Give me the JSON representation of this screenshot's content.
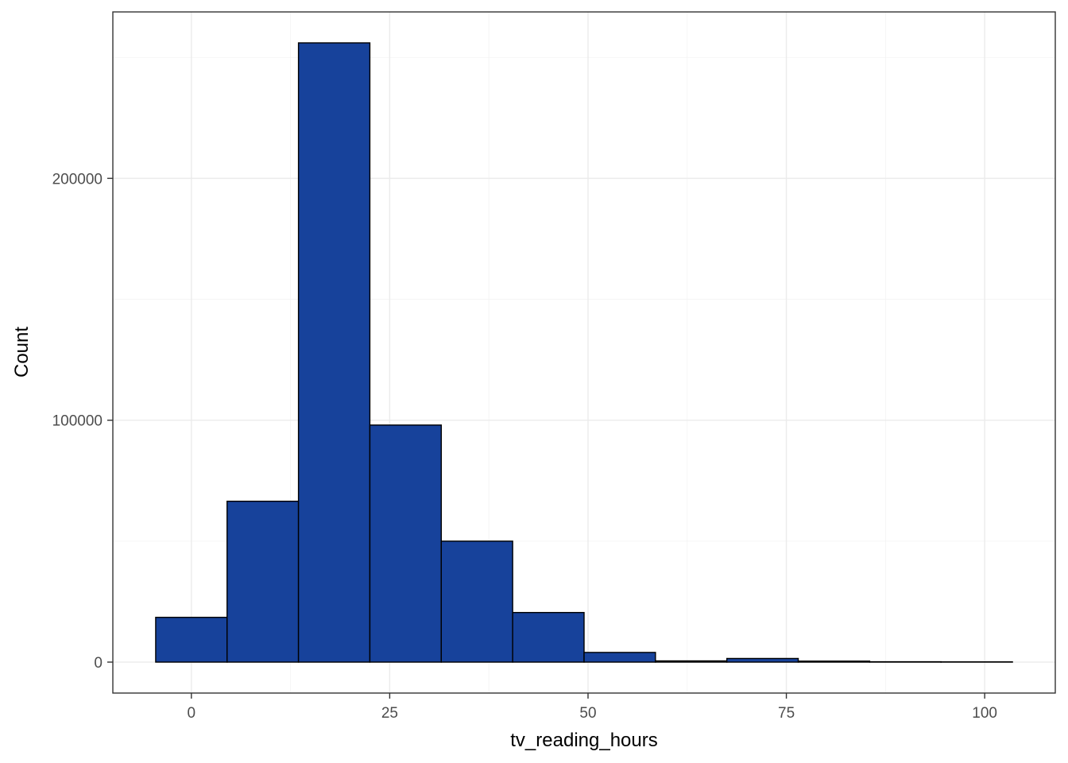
{
  "chart_data": {
    "type": "bar",
    "histogram": true,
    "xlabel": "tv_reading_hours",
    "ylabel": "Count",
    "bin_width": 9,
    "bins": [
      {
        "start": -4.5,
        "end": 4.5,
        "count": 18500
      },
      {
        "start": 4.5,
        "end": 13.5,
        "count": 66500
      },
      {
        "start": 13.5,
        "end": 22.5,
        "count": 256000
      },
      {
        "start": 22.5,
        "end": 31.5,
        "count": 98000
      },
      {
        "start": 31.5,
        "end": 40.5,
        "count": 50000
      },
      {
        "start": 40.5,
        "end": 49.5,
        "count": 20500
      },
      {
        "start": 49.5,
        "end": 58.5,
        "count": 4000
      },
      {
        "start": 58.5,
        "end": 67.5,
        "count": 500
      },
      {
        "start": 67.5,
        "end": 76.5,
        "count": 1500
      },
      {
        "start": 76.5,
        "end": 85.5,
        "count": 400
      },
      {
        "start": 85.5,
        "end": 94.5,
        "count": 150
      },
      {
        "start": 94.5,
        "end": 103.5,
        "count": 100
      }
    ],
    "x_ticks": [
      0,
      25,
      50,
      75,
      100
    ],
    "x_tick_labels": [
      "0",
      "25",
      "50",
      "75",
      "100"
    ],
    "y_ticks": [
      0,
      100000,
      200000
    ],
    "y_tick_labels": [
      "0",
      "100000",
      "200000"
    ],
    "xlim": [
      -9.9,
      108.9
    ],
    "ylim": [
      -12800,
      268800
    ],
    "grid": true,
    "bar_color": "#17429B",
    "bar_edge_color": "#000000"
  }
}
